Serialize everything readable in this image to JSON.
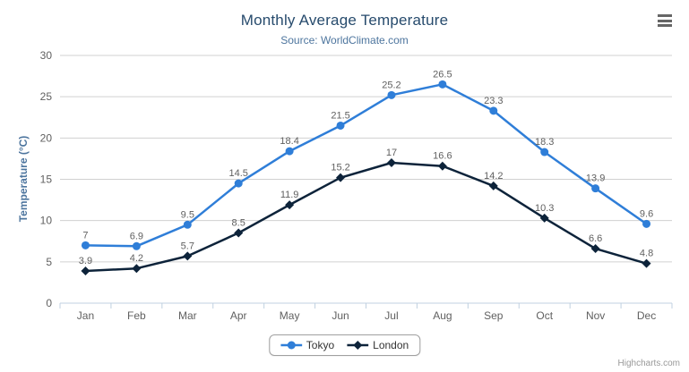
{
  "header": {
    "title": "Monthly Average Temperature",
    "subtitle": "Source: WorldClimate.com"
  },
  "chart_data": {
    "type": "line",
    "title": "Monthly Average Temperature",
    "subtitle": "Source: WorldClimate.com",
    "xlabel": "",
    "ylabel": "Temperature (°C)",
    "categories": [
      "Jan",
      "Feb",
      "Mar",
      "Apr",
      "May",
      "Jun",
      "Jul",
      "Aug",
      "Sep",
      "Oct",
      "Nov",
      "Dec"
    ],
    "series": [
      {
        "name": "Tokyo",
        "color": "#2f7ed8",
        "marker": "circle",
        "values": [
          7,
          6.9,
          9.5,
          14.5,
          18.4,
          21.5,
          25.2,
          26.5,
          23.3,
          18.3,
          13.9,
          9.6
        ]
      },
      {
        "name": "London",
        "color": "#0d233a",
        "marker": "diamond",
        "values": [
          3.9,
          4.2,
          5.7,
          8.5,
          11.9,
          15.2,
          17,
          16.6,
          14.2,
          10.3,
          6.6,
          4.8
        ]
      }
    ],
    "ylim": [
      0,
      30
    ],
    "ytick_step": 5,
    "grid": true,
    "data_labels": true,
    "legend_position": "bottom-center"
  },
  "styles": {
    "grid_color": "#d0d0d0",
    "axis_line_color": "#c0d0e0",
    "axis_label_color": "#606060",
    "data_label_color": "#606060",
    "title_color": "#274b6d",
    "subtitle_color": "#4d759e"
  },
  "credits": {
    "label": "Highcharts.com"
  }
}
